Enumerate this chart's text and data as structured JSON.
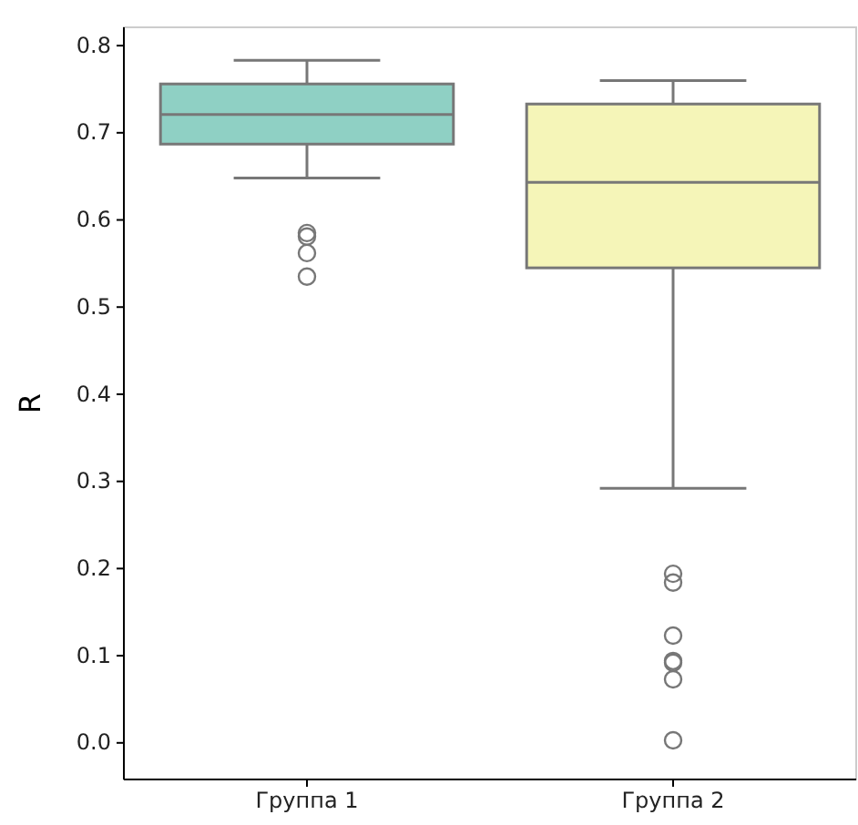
{
  "chart_data": {
    "type": "box",
    "ylabel": "R",
    "categories": [
      "Группа 1",
      "Группа 2"
    ],
    "colors": [
      "#8fd0c4",
      "#f5f5b8"
    ],
    "boxes": [
      {
        "low": 0.648,
        "q1": 0.687,
        "median": 0.721,
        "q3": 0.756,
        "high": 0.783,
        "outliers": [
          0.585,
          0.581,
          0.562,
          0.535
        ]
      },
      {
        "low": 0.292,
        "q1": 0.545,
        "median": 0.643,
        "q3": 0.733,
        "high": 0.76,
        "outliers": [
          0.194,
          0.184,
          0.123,
          0.094,
          0.092,
          0.073,
          0.003
        ]
      }
    ],
    "ylim": [
      -0.042,
      0.821
    ],
    "yticks": [
      {
        "value": 0,
        "label": "0.0"
      },
      0.1,
      0.2,
      0.3,
      0.4,
      0.5,
      0.6,
      0.7,
      0.8
    ],
    "grid": false
  }
}
